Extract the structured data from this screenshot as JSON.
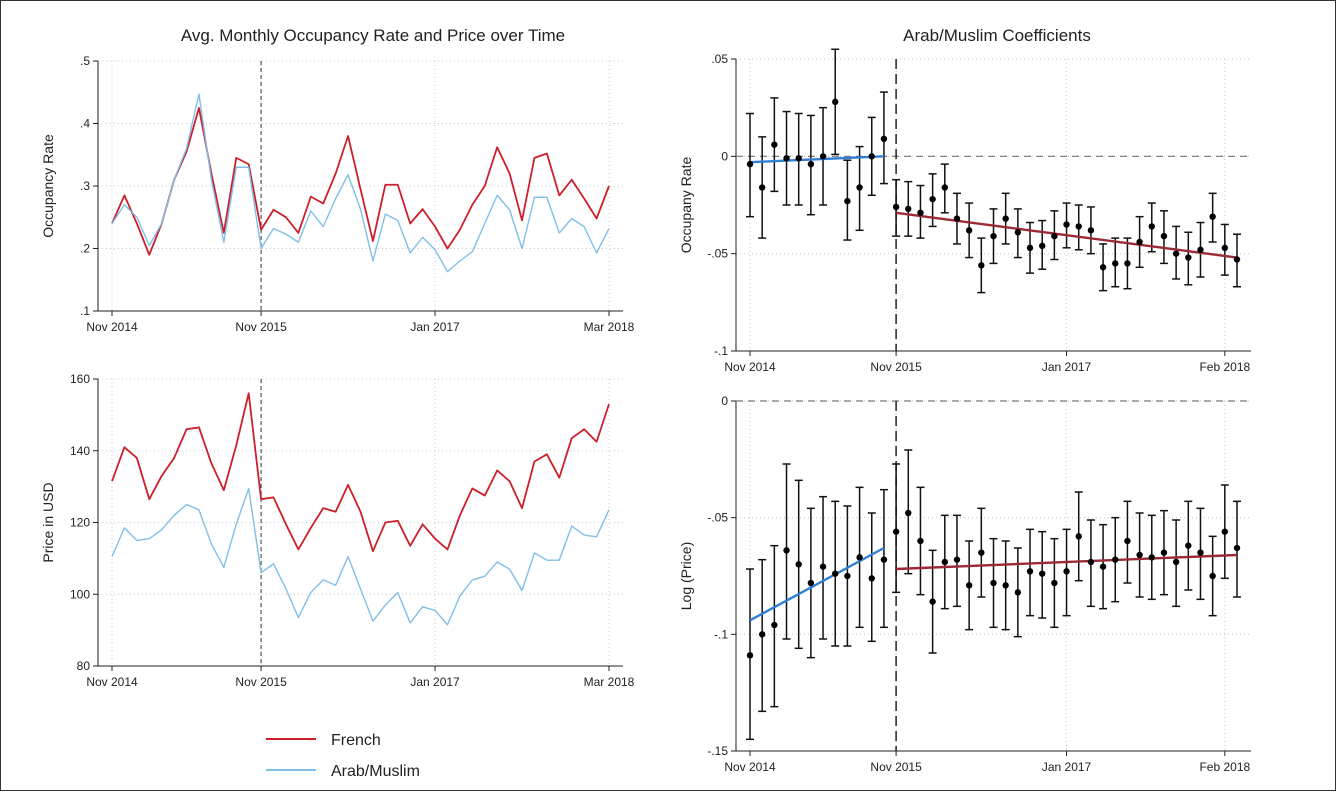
{
  "figure": {
    "left_title": "Avg. Monthly Occupancy Rate and Price over Time",
    "right_title": "Arab/Muslim Coefficients"
  },
  "legend": [
    {
      "label": "French",
      "color": "#cc1f2b"
    },
    {
      "label": "Arab/Muslim",
      "color": "#7fbfe8"
    }
  ],
  "chart_data": [
    {
      "id": "occupancy",
      "type": "line",
      "ylabel": "Occupancy Rate",
      "ylim": [
        0.1,
        0.5
      ],
      "yticks": [
        ".1",
        ".2",
        ".3",
        ".4",
        ".5"
      ],
      "ytick_values": [
        0.1,
        0.2,
        0.3,
        0.4,
        0.5
      ],
      "x_start": "Nov 2014",
      "x_end": "Mar 2018",
      "xticks": [
        "Nov 2014",
        "Nov 2015",
        "Jan 2017",
        "Mar 2018"
      ],
      "xtick_index": [
        0,
        12,
        26,
        40
      ],
      "vline_index": 12,
      "grid": true,
      "series": [
        {
          "name": "French",
          "color": "#cc1f2b",
          "values": [
            0.24,
            0.285,
            0.24,
            0.19,
            0.24,
            0.31,
            0.355,
            0.425,
            0.32,
            0.225,
            0.345,
            0.335,
            0.23,
            0.262,
            0.25,
            0.225,
            0.283,
            0.272,
            0.32,
            0.38,
            0.295,
            0.212,
            0.302,
            0.302,
            0.24,
            0.263,
            0.235,
            0.2,
            0.23,
            0.27,
            0.3,
            0.362,
            0.32,
            0.245,
            0.345,
            0.352,
            0.285,
            0.31,
            0.28,
            0.248,
            0.3
          ]
        },
        {
          "name": "Arab/Muslim",
          "color": "#7fbfe8",
          "values": [
            0.24,
            0.27,
            0.25,
            0.205,
            0.24,
            0.31,
            0.36,
            0.447,
            0.31,
            0.21,
            0.33,
            0.33,
            0.2,
            0.232,
            0.223,
            0.21,
            0.26,
            0.235,
            0.28,
            0.318,
            0.263,
            0.18,
            0.255,
            0.245,
            0.193,
            0.218,
            0.198,
            0.163,
            0.18,
            0.195,
            0.24,
            0.285,
            0.262,
            0.2,
            0.282,
            0.282,
            0.225,
            0.248,
            0.235,
            0.193,
            0.232
          ]
        }
      ]
    },
    {
      "id": "price",
      "type": "line",
      "ylabel": "Price in USD",
      "ylim": [
        80,
        160
      ],
      "yticks": [
        "80",
        "100",
        "120",
        "140",
        "160"
      ],
      "ytick_values": [
        80,
        100,
        120,
        140,
        160
      ],
      "x_start": "Nov 2014",
      "x_end": "Mar 2018",
      "xticks": [
        "Nov 2014",
        "Nov 2015",
        "Jan 2017",
        "Mar 2018"
      ],
      "xtick_index": [
        0,
        12,
        26,
        40
      ],
      "vline_index": 12,
      "grid": true,
      "series": [
        {
          "name": "French",
          "color": "#cc1f2b",
          "values": [
            131.5,
            141.0,
            138.0,
            126.5,
            133.0,
            138.0,
            146.0,
            146.5,
            136.5,
            129.0,
            141.5,
            156.0,
            126.5,
            127.0,
            119.5,
            112.5,
            118.5,
            124.0,
            123.0,
            130.5,
            123.0,
            112.0,
            120.0,
            120.5,
            113.5,
            119.5,
            115.5,
            112.5,
            122.0,
            129.5,
            127.5,
            134.5,
            131.5,
            124.0,
            137.0,
            139.0,
            132.5,
            143.5,
            146.0,
            142.5,
            153.0
          ]
        },
        {
          "name": "Arab/Muslim",
          "color": "#7fbfe8",
          "values": [
            110.5,
            118.5,
            115.0,
            115.5,
            118.0,
            122.0,
            125.0,
            123.5,
            114.0,
            107.5,
            119.5,
            129.5,
            106.0,
            108.5,
            101.5,
            93.5,
            100.5,
            104.0,
            102.5,
            110.5,
            101.5,
            92.5,
            97.0,
            100.5,
            92.0,
            96.5,
            95.5,
            91.5,
            99.5,
            104.0,
            105.0,
            109.0,
            107.0,
            101.0,
            111.5,
            109.5,
            109.5,
            119.0,
            116.5,
            116.0,
            123.5
          ]
        }
      ]
    },
    {
      "id": "coef_occupancy",
      "type": "scatter",
      "ylabel": "Occupany Rate",
      "ylim": [
        -0.1,
        0.05
      ],
      "yticks": [
        ".05",
        "0",
        "-.05",
        "-.1"
      ],
      "ytick_values": [
        0.05,
        0,
        -0.05,
        -0.1
      ],
      "x_start": "Nov 2014",
      "x_end": "Feb 2018",
      "xticks": [
        "Nov 2014",
        "Nov 2015",
        "Jan 2017",
        "Feb 2018"
      ],
      "xtick_index": [
        0,
        12,
        26,
        39
      ],
      "vline_index": 12,
      "hline": 0,
      "grid": true,
      "points": [
        {
          "x": 0,
          "y": -0.004,
          "lo": -0.031,
          "hi": 0.022
        },
        {
          "x": 1,
          "y": -0.016,
          "lo": -0.042,
          "hi": 0.01
        },
        {
          "x": 2,
          "y": 0.006,
          "lo": -0.018,
          "hi": 0.03
        },
        {
          "x": 3,
          "y": -0.001,
          "lo": -0.025,
          "hi": 0.023
        },
        {
          "x": 4,
          "y": -0.001,
          "lo": -0.025,
          "hi": 0.022
        },
        {
          "x": 5,
          "y": -0.004,
          "lo": -0.03,
          "hi": 0.021
        },
        {
          "x": 6,
          "y": 0.0,
          "lo": -0.025,
          "hi": 0.025
        },
        {
          "x": 7,
          "y": 0.028,
          "lo": 0.001,
          "hi": 0.055
        },
        {
          "x": 8,
          "y": -0.023,
          "lo": -0.043,
          "hi": -0.002
        },
        {
          "x": 9,
          "y": -0.016,
          "lo": -0.038,
          "hi": 0.005
        },
        {
          "x": 10,
          "y": 0.0,
          "lo": -0.02,
          "hi": 0.02
        },
        {
          "x": 11,
          "y": 0.009,
          "lo": -0.014,
          "hi": 0.033
        },
        {
          "x": 12,
          "y": -0.026,
          "lo": -0.041,
          "hi": -0.012
        },
        {
          "x": 13,
          "y": -0.027,
          "lo": -0.041,
          "hi": -0.013
        },
        {
          "x": 14,
          "y": -0.029,
          "lo": -0.042,
          "hi": -0.015
        },
        {
          "x": 15,
          "y": -0.022,
          "lo": -0.036,
          "hi": -0.009
        },
        {
          "x": 16,
          "y": -0.016,
          "lo": -0.029,
          "hi": -0.004
        },
        {
          "x": 17,
          "y": -0.032,
          "lo": -0.045,
          "hi": -0.019
        },
        {
          "x": 18,
          "y": -0.038,
          "lo": -0.052,
          "hi": -0.024
        },
        {
          "x": 19,
          "y": -0.056,
          "lo": -0.07,
          "hi": -0.042
        },
        {
          "x": 20,
          "y": -0.041,
          "lo": -0.055,
          "hi": -0.027
        },
        {
          "x": 21,
          "y": -0.032,
          "lo": -0.045,
          "hi": -0.019
        },
        {
          "x": 22,
          "y": -0.039,
          "lo": -0.052,
          "hi": -0.027
        },
        {
          "x": 23,
          "y": -0.047,
          "lo": -0.06,
          "hi": -0.034
        },
        {
          "x": 24,
          "y": -0.046,
          "lo": -0.058,
          "hi": -0.033
        },
        {
          "x": 25,
          "y": -0.041,
          "lo": -0.053,
          "hi": -0.028
        },
        {
          "x": 26,
          "y": -0.035,
          "lo": -0.047,
          "hi": -0.024
        },
        {
          "x": 27,
          "y": -0.036,
          "lo": -0.048,
          "hi": -0.025
        },
        {
          "x": 28,
          "y": -0.038,
          "lo": -0.05,
          "hi": -0.026
        },
        {
          "x": 29,
          "y": -0.057,
          "lo": -0.069,
          "hi": -0.045
        },
        {
          "x": 30,
          "y": -0.055,
          "lo": -0.067,
          "hi": -0.042
        },
        {
          "x": 31,
          "y": -0.055,
          "lo": -0.068,
          "hi": -0.042
        },
        {
          "x": 32,
          "y": -0.044,
          "lo": -0.057,
          "hi": -0.031
        },
        {
          "x": 33,
          "y": -0.036,
          "lo": -0.049,
          "hi": -0.024
        },
        {
          "x": 34,
          "y": -0.041,
          "lo": -0.055,
          "hi": -0.028
        },
        {
          "x": 35,
          "y": -0.05,
          "lo": -0.063,
          "hi": -0.036
        },
        {
          "x": 36,
          "y": -0.052,
          "lo": -0.066,
          "hi": -0.039
        },
        {
          "x": 37,
          "y": -0.048,
          "lo": -0.062,
          "hi": -0.034
        },
        {
          "x": 38,
          "y": -0.031,
          "lo": -0.044,
          "hi": -0.019
        },
        {
          "x": 39,
          "y": -0.047,
          "lo": -0.061,
          "hi": -0.035
        },
        {
          "x": 40,
          "y": -0.053,
          "lo": -0.067,
          "hi": -0.04
        }
      ],
      "fits": [
        {
          "color": "#2f7fd4",
          "x": [
            0,
            11
          ],
          "y": [
            -0.003,
            0.0
          ]
        },
        {
          "color": "#9b2a35",
          "x": [
            12,
            40
          ],
          "y": [
            -0.029,
            -0.052
          ]
        }
      ]
    },
    {
      "id": "coef_price",
      "type": "scatter",
      "ylabel": "Log (Price)",
      "ylim": [
        -0.15,
        0
      ],
      "yticks": [
        "0",
        "-.05",
        "-.1",
        "-.15"
      ],
      "ytick_values": [
        0,
        -0.05,
        -0.1,
        -0.15
      ],
      "x_start": "Nov 2014",
      "x_end": "Feb 2018",
      "xticks": [
        "Nov 2014",
        "Nov 2015",
        "Jan 2017",
        "Feb 2018"
      ],
      "xtick_index": [
        0,
        12,
        26,
        39
      ],
      "vline_index": 12,
      "hline": 0,
      "grid": true,
      "points": [
        {
          "x": 0,
          "y": -0.109,
          "lo": -0.145,
          "hi": -0.072
        },
        {
          "x": 1,
          "y": -0.1,
          "lo": -0.133,
          "hi": -0.068
        },
        {
          "x": 2,
          "y": -0.096,
          "lo": -0.131,
          "hi": -0.062
        },
        {
          "x": 3,
          "y": -0.064,
          "lo": -0.102,
          "hi": -0.027
        },
        {
          "x": 4,
          "y": -0.07,
          "lo": -0.106,
          "hi": -0.034
        },
        {
          "x": 5,
          "y": -0.078,
          "lo": -0.11,
          "hi": -0.046
        },
        {
          "x": 6,
          "y": -0.071,
          "lo": -0.102,
          "hi": -0.041
        },
        {
          "x": 7,
          "y": -0.074,
          "lo": -0.105,
          "hi": -0.043
        },
        {
          "x": 8,
          "y": -0.075,
          "lo": -0.105,
          "hi": -0.045
        },
        {
          "x": 9,
          "y": -0.067,
          "lo": -0.097,
          "hi": -0.037
        },
        {
          "x": 10,
          "y": -0.076,
          "lo": -0.103,
          "hi": -0.048
        },
        {
          "x": 11,
          "y": -0.068,
          "lo": -0.097,
          "hi": -0.038
        },
        {
          "x": 12,
          "y": -0.056,
          "lo": -0.082,
          "hi": -0.027
        },
        {
          "x": 13,
          "y": -0.048,
          "lo": -0.074,
          "hi": -0.021
        },
        {
          "x": 14,
          "y": -0.06,
          "lo": -0.083,
          "hi": -0.037
        },
        {
          "x": 15,
          "y": -0.086,
          "lo": -0.108,
          "hi": -0.064
        },
        {
          "x": 16,
          "y": -0.069,
          "lo": -0.089,
          "hi": -0.049
        },
        {
          "x": 17,
          "y": -0.068,
          "lo": -0.088,
          "hi": -0.049
        },
        {
          "x": 18,
          "y": -0.079,
          "lo": -0.098,
          "hi": -0.06
        },
        {
          "x": 19,
          "y": -0.065,
          "lo": -0.084,
          "hi": -0.046
        },
        {
          "x": 20,
          "y": -0.078,
          "lo": -0.097,
          "hi": -0.059
        },
        {
          "x": 21,
          "y": -0.079,
          "lo": -0.098,
          "hi": -0.06
        },
        {
          "x": 22,
          "y": -0.082,
          "lo": -0.101,
          "hi": -0.063
        },
        {
          "x": 23,
          "y": -0.073,
          "lo": -0.092,
          "hi": -0.055
        },
        {
          "x": 24,
          "y": -0.074,
          "lo": -0.093,
          "hi": -0.056
        },
        {
          "x": 25,
          "y": -0.078,
          "lo": -0.097,
          "hi": -0.059
        },
        {
          "x": 26,
          "y": -0.073,
          "lo": -0.092,
          "hi": -0.055
        },
        {
          "x": 27,
          "y": -0.058,
          "lo": -0.077,
          "hi": -0.039
        },
        {
          "x": 28,
          "y": -0.069,
          "lo": -0.088,
          "hi": -0.051
        },
        {
          "x": 29,
          "y": -0.071,
          "lo": -0.089,
          "hi": -0.053
        },
        {
          "x": 30,
          "y": -0.068,
          "lo": -0.086,
          "hi": -0.05
        },
        {
          "x": 31,
          "y": -0.06,
          "lo": -0.078,
          "hi": -0.043
        },
        {
          "x": 32,
          "y": -0.066,
          "lo": -0.084,
          "hi": -0.048
        },
        {
          "x": 33,
          "y": -0.067,
          "lo": -0.085,
          "hi": -0.049
        },
        {
          "x": 34,
          "y": -0.065,
          "lo": -0.083,
          "hi": -0.047
        },
        {
          "x": 35,
          "y": -0.069,
          "lo": -0.088,
          "hi": -0.051
        },
        {
          "x": 36,
          "y": -0.062,
          "lo": -0.081,
          "hi": -0.043
        },
        {
          "x": 37,
          "y": -0.065,
          "lo": -0.085,
          "hi": -0.046
        },
        {
          "x": 38,
          "y": -0.075,
          "lo": -0.092,
          "hi": -0.058
        },
        {
          "x": 39,
          "y": -0.056,
          "lo": -0.076,
          "hi": -0.036
        },
        {
          "x": 40,
          "y": -0.063,
          "lo": -0.084,
          "hi": -0.043
        }
      ],
      "fits": [
        {
          "color": "#2f7fd4",
          "x": [
            0,
            11
          ],
          "y": [
            -0.094,
            -0.063
          ]
        },
        {
          "color": "#9b2a35",
          "x": [
            12,
            40
          ],
          "y": [
            -0.072,
            -0.066
          ]
        }
      ]
    }
  ]
}
